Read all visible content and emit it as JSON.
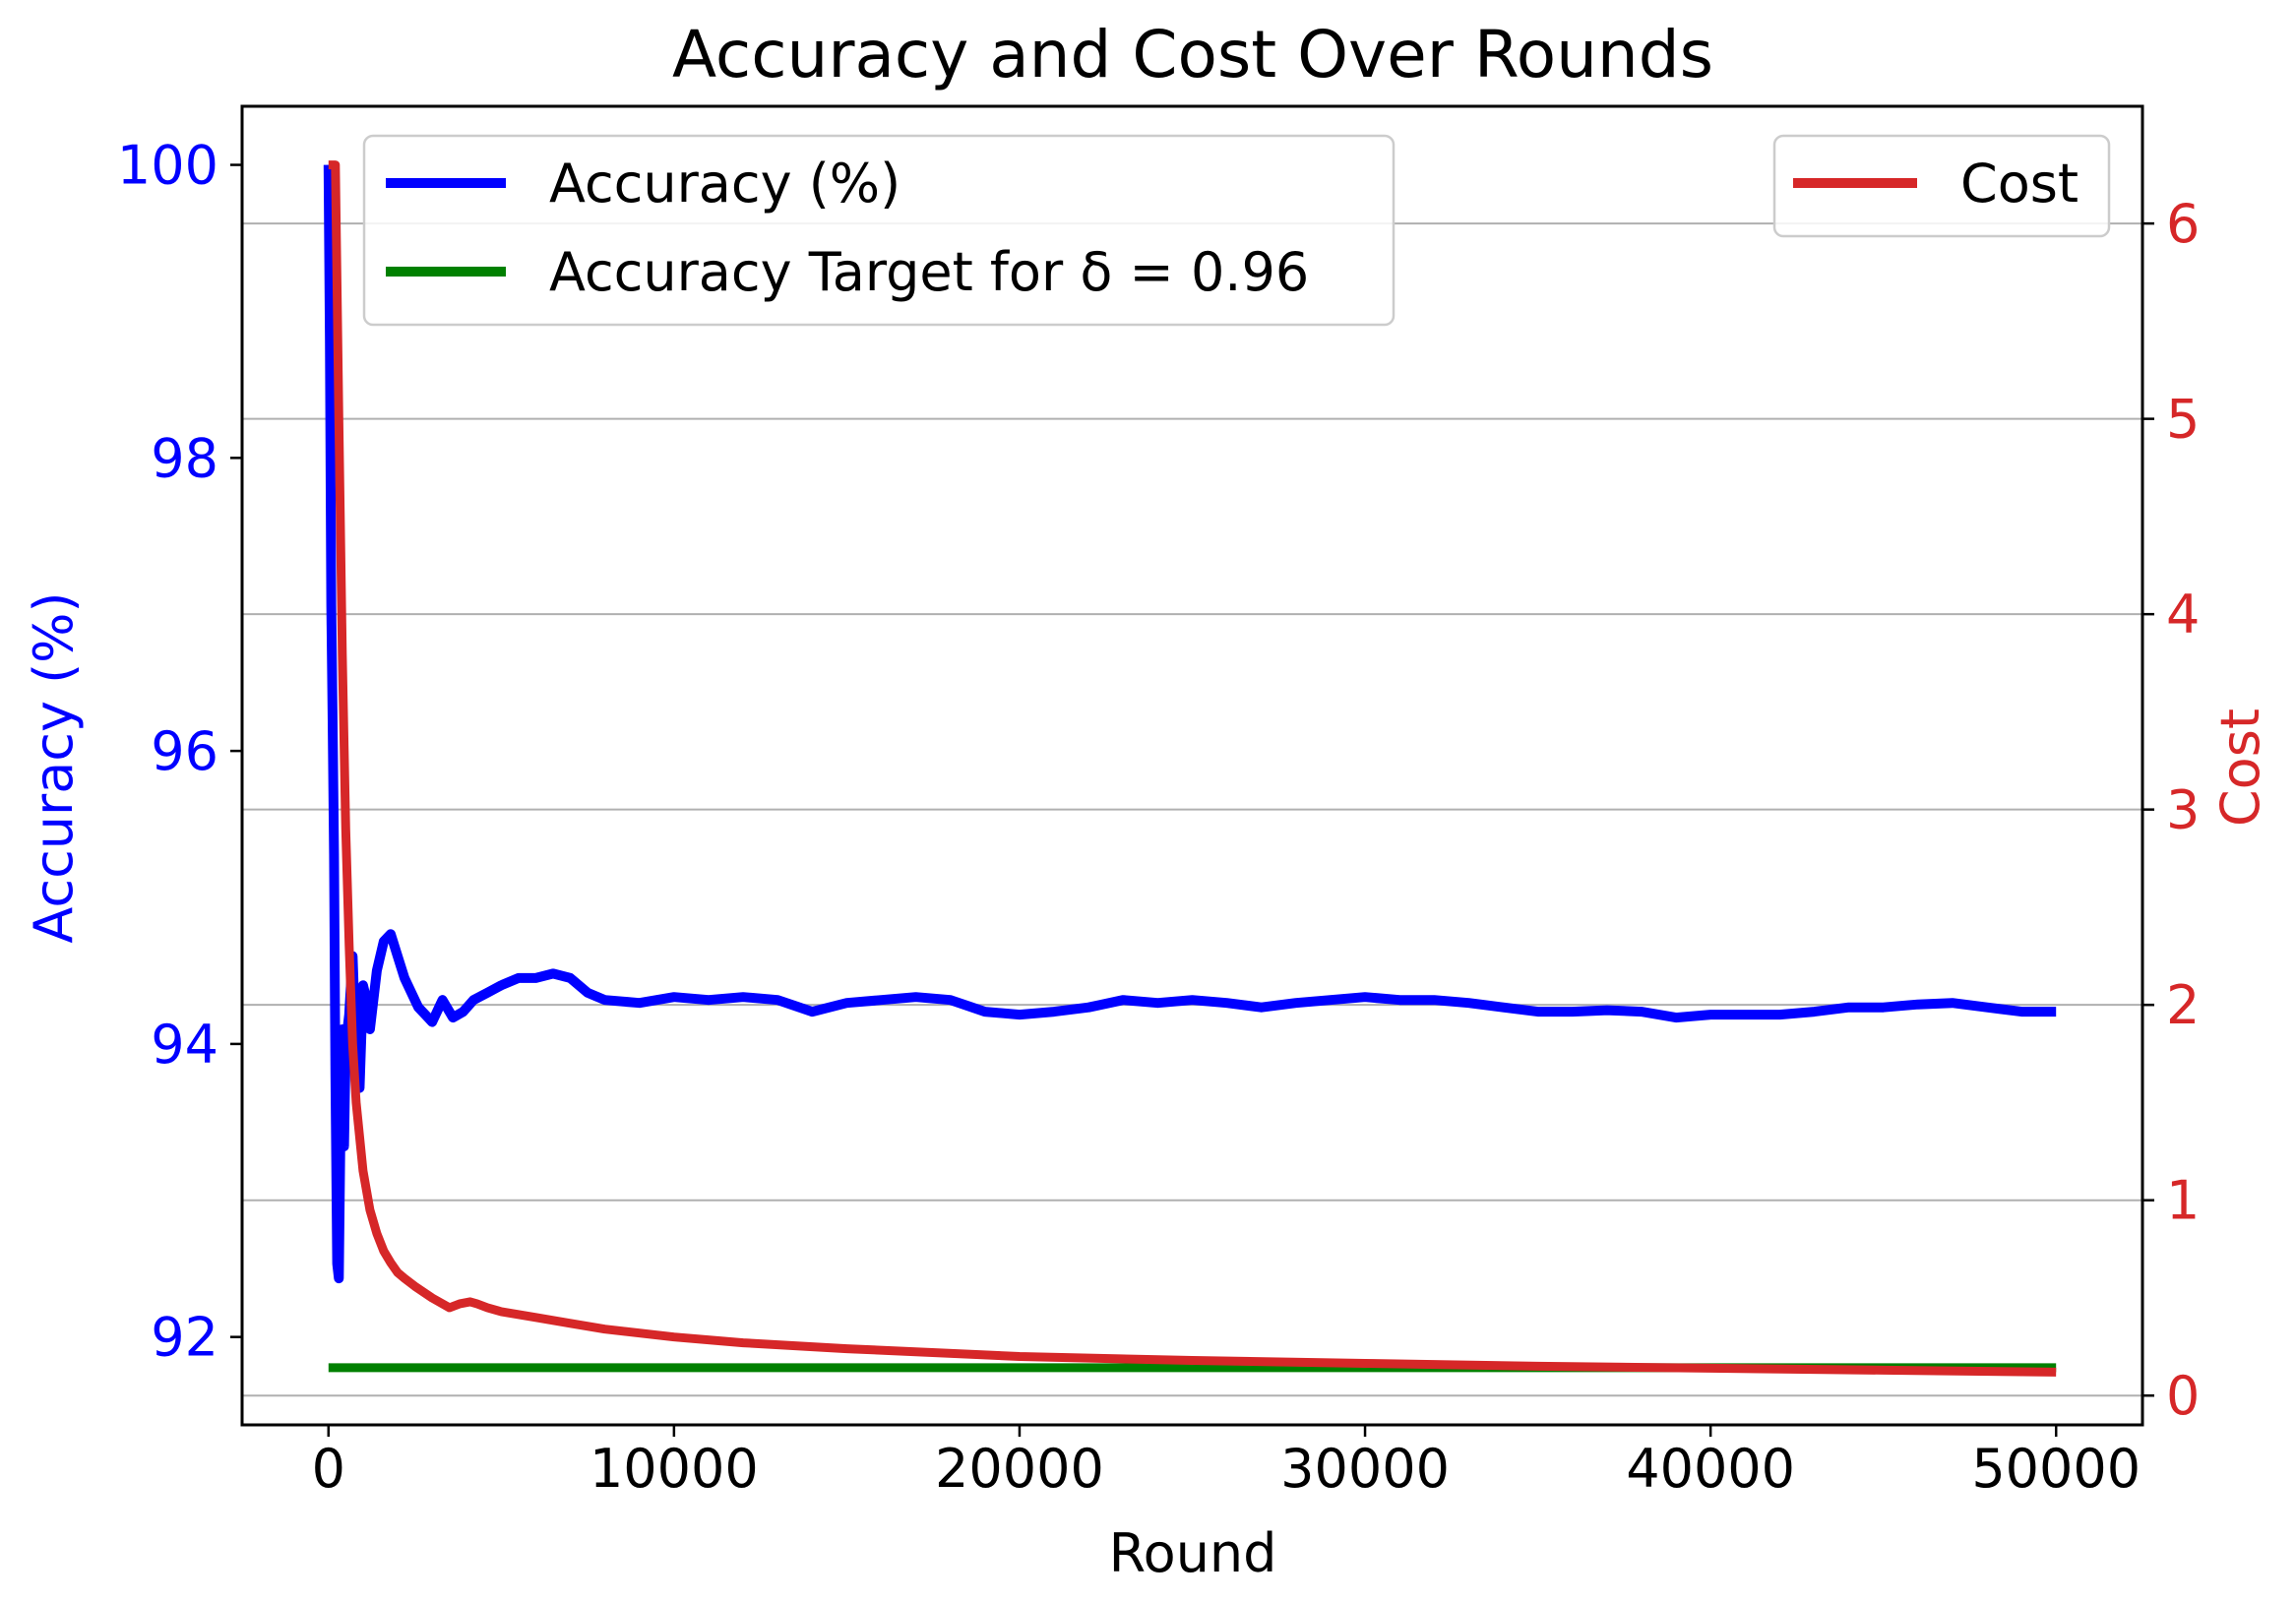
{
  "chart_data": {
    "type": "line",
    "title": "Accuracy and Cost Over Rounds",
    "xlabel": "Round",
    "ylabel_left": "Accuracy (%)",
    "ylabel_right": "Cost",
    "xlim": [
      -2500,
      52500
    ],
    "ylim_left": [
      91.4,
      100.4
    ],
    "ylim_right": [
      -0.15,
      6.6
    ],
    "x_ticks": [
      0,
      10000,
      20000,
      30000,
      40000,
      50000
    ],
    "y_left_ticks": [
      92,
      94,
      96,
      98,
      100
    ],
    "y_right_ticks": [
      0,
      1,
      2,
      3,
      4,
      5,
      6
    ],
    "grid": "horizontal lines at right-axis ticks",
    "left_axis_color": "#0000ff",
    "right_axis_color": "#d62728",
    "legend_left": {
      "placement": "upper-left",
      "entries": [
        {
          "label": "Accuracy (%)",
          "color": "#0000ff"
        },
        {
          "label": "Accuracy Target for δ = 0.96",
          "color": "#008000"
        }
      ]
    },
    "legend_right": {
      "placement": "upper-right",
      "entries": [
        {
          "label": "Cost",
          "color": "#d62728"
        }
      ]
    },
    "series": [
      {
        "name": "Accuracy (%)",
        "axis": "left",
        "color": "#0000ff",
        "x": [
          0,
          40,
          80,
          120,
          160,
          200,
          250,
          300,
          350,
          400,
          450,
          500,
          600,
          700,
          800,
          900,
          1000,
          1100,
          1200,
          1400,
          1600,
          1800,
          2000,
          2200,
          2400,
          2600,
          2800,
          3000,
          3300,
          3600,
          3900,
          4200,
          4600,
          5000,
          5500,
          6000,
          6500,
          7000,
          7500,
          8000,
          9000,
          10000,
          11000,
          12000,
          13000,
          14000,
          15000,
          16000,
          17000,
          18000,
          19000,
          20000,
          21000,
          22000,
          23000,
          24000,
          25000,
          26000,
          27000,
          28000,
          29000,
          30000,
          31000,
          32000,
          33000,
          34000,
          35000,
          36000,
          37000,
          38000,
          39000,
          40000,
          41000,
          42000,
          43000,
          44000,
          45000,
          46000,
          47000,
          48000,
          49000,
          50000
        ],
        "y": [
          100,
          98.8,
          97.0,
          96.2,
          95.3,
          93.8,
          92.5,
          92.4,
          93.5,
          94.1,
          93.3,
          94.0,
          94.2,
          94.6,
          93.9,
          93.7,
          94.4,
          94.3,
          94.1,
          94.5,
          94.7,
          94.75,
          94.6,
          94.45,
          94.35,
          94.25,
          94.2,
          94.15,
          94.3,
          94.18,
          94.22,
          94.3,
          94.35,
          94.4,
          94.45,
          94.45,
          94.48,
          94.45,
          94.35,
          94.3,
          94.28,
          94.32,
          94.3,
          94.32,
          94.3,
          94.22,
          94.28,
          94.3,
          94.32,
          94.3,
          94.22,
          94.2,
          94.22,
          94.25,
          94.3,
          94.28,
          94.3,
          94.28,
          94.25,
          94.28,
          94.3,
          94.32,
          94.3,
          94.3,
          94.28,
          94.25,
          94.22,
          94.22,
          94.23,
          94.22,
          94.18,
          94.2,
          94.2,
          94.2,
          94.22,
          94.25,
          94.25,
          94.27,
          94.28,
          94.25,
          94.22,
          94.22
        ]
      },
      {
        "name": "Accuracy Target for δ = 0.96",
        "axis": "left",
        "color": "#008000",
        "x": [
          0,
          50000
        ],
        "y": [
          91.79,
          91.79
        ]
      },
      {
        "name": "Cost",
        "axis": "right",
        "color": "#d62728",
        "x": [
          0,
          200,
          300,
          400,
          500,
          600,
          700,
          800,
          1000,
          1200,
          1400,
          1600,
          1800,
          2000,
          2200,
          2500,
          3000,
          3500,
          3800,
          4100,
          4300,
          4600,
          5000,
          6000,
          7000,
          8000,
          9000,
          10000,
          12000,
          15000,
          20000,
          25000,
          30000,
          35000,
          40000,
          45000,
          50000
        ],
        "y": [
          6.3,
          6.3,
          5.0,
          3.8,
          2.9,
          2.3,
          1.8,
          1.5,
          1.15,
          0.95,
          0.83,
          0.74,
          0.68,
          0.63,
          0.6,
          0.56,
          0.5,
          0.45,
          0.47,
          0.48,
          0.47,
          0.45,
          0.43,
          0.4,
          0.37,
          0.34,
          0.32,
          0.3,
          0.27,
          0.24,
          0.2,
          0.18,
          0.165,
          0.15,
          0.14,
          0.13,
          0.12
        ]
      }
    ]
  }
}
